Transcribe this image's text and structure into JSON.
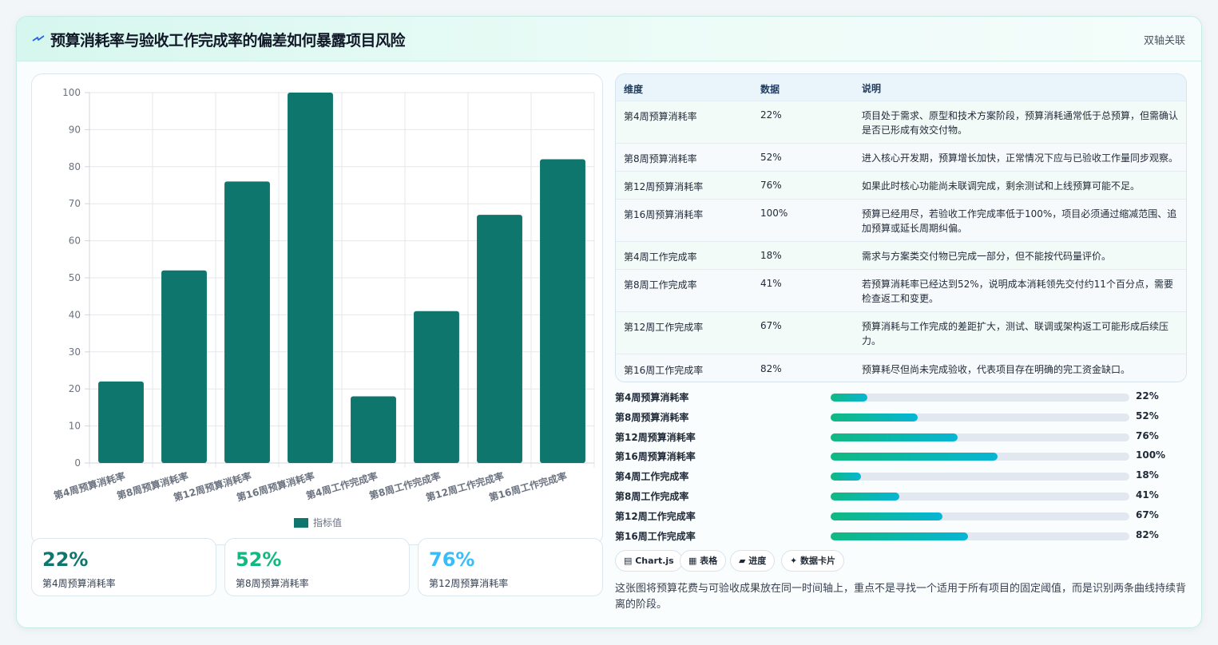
{
  "header": {
    "title": "预算消耗率与验收工作完成率的偏差如何暴露项目风险",
    "tag": "双轴关联",
    "icon": "zap-icon"
  },
  "chart_data": {
    "type": "bar",
    "categories": [
      "第4周预算消耗率",
      "第8周预算消耗率",
      "第12周预算消耗率",
      "第16周预算消耗率",
      "第4周工作完成率",
      "第8周工作完成率",
      "第12周工作完成率",
      "第16周工作完成率"
    ],
    "series": [
      {
        "name": "指标值",
        "values": [
          22,
          52,
          76,
          100,
          18,
          41,
          67,
          82
        ],
        "color": "#0f766e"
      }
    ],
    "ylim": [
      0,
      100
    ],
    "yticks": [
      "0",
      "10",
      "20",
      "30",
      "40",
      "50",
      "60",
      "70",
      "80",
      "90",
      "100"
    ],
    "grid": true,
    "legend": "bottom"
  },
  "stats": [
    {
      "value": "22%",
      "label": "第4周预算消耗率",
      "color": "#0f766e"
    },
    {
      "value": "52%",
      "label": "第8周预算消耗率",
      "color": "#10b981"
    },
    {
      "value": "76%",
      "label": "第12周预算消耗率",
      "color": "#38bdf8"
    }
  ],
  "table": {
    "headers": [
      "维度",
      "数据",
      "说明"
    ],
    "rows": [
      {
        "dim": "第4周预算消耗率",
        "val": "22%",
        "note": "项目处于需求、原型和技术方案阶段，预算消耗通常低于总预算，但需确认是否已形成有效交付物。"
      },
      {
        "dim": "第8周预算消耗率",
        "val": "52%",
        "note": "进入核心开发期，预算增长加快，正常情况下应与已验收工作量同步观察。"
      },
      {
        "dim": "第12周预算消耗率",
        "val": "76%",
        "note": "如果此时核心功能尚未联调完成，剩余测试和上线预算可能不足。"
      },
      {
        "dim": "第16周预算消耗率",
        "val": "100%",
        "note": "预算已经用尽，若验收工作完成率低于100%，项目必须通过缩减范围、追加预算或延长周期纠偏。"
      },
      {
        "dim": "第4周工作完成率",
        "val": "18%",
        "note": "需求与方案类交付物已完成一部分，但不能按代码量评价。"
      },
      {
        "dim": "第8周工作完成率",
        "val": "41%",
        "note": "若预算消耗率已经达到52%，说明成本消耗领先交付约11个百分点，需要检查返工和变更。"
      },
      {
        "dim": "第12周工作完成率",
        "val": "67%",
        "note": "预算消耗与工作完成的差距扩大，测试、联调或架构返工可能形成后续压力。"
      },
      {
        "dim": "第16周工作完成率",
        "val": "82%",
        "note": "预算耗尽但尚未完成验收，代表项目存在明确的完工资金缺口。"
      }
    ]
  },
  "progress": [
    {
      "label": "第4周预算消耗率",
      "value": 22,
      "text": "22%"
    },
    {
      "label": "第8周预算消耗率",
      "value": 52,
      "text": "52%"
    },
    {
      "label": "第12周预算消耗率",
      "value": 76,
      "text": "76%"
    },
    {
      "label": "第16周预算消耗率",
      "value": 100,
      "text": "100%"
    },
    {
      "label": "第4周工作完成率",
      "value": 18,
      "text": "18%"
    },
    {
      "label": "第8周工作完成率",
      "value": 41,
      "text": "41%"
    },
    {
      "label": "第12周工作完成率",
      "value": 67,
      "text": "67%"
    },
    {
      "label": "第16周工作完成率",
      "value": 82,
      "text": "82%"
    }
  ],
  "chips": [
    {
      "label": "▤ Chart.js",
      "icon": "chart-icon"
    },
    {
      "label": "▦ 表格",
      "icon": "table-icon"
    },
    {
      "label": "▰ 进度",
      "icon": "progress-icon"
    },
    {
      "label": "✦ 数据卡片",
      "icon": "sparkle-icon"
    }
  ],
  "description": "这张图将预算花费与可验收成果放在同一时间轴上，重点不是寻找一个适用于所有项目的固定阈值，而是识别两条曲线持续背离的阶段。"
}
